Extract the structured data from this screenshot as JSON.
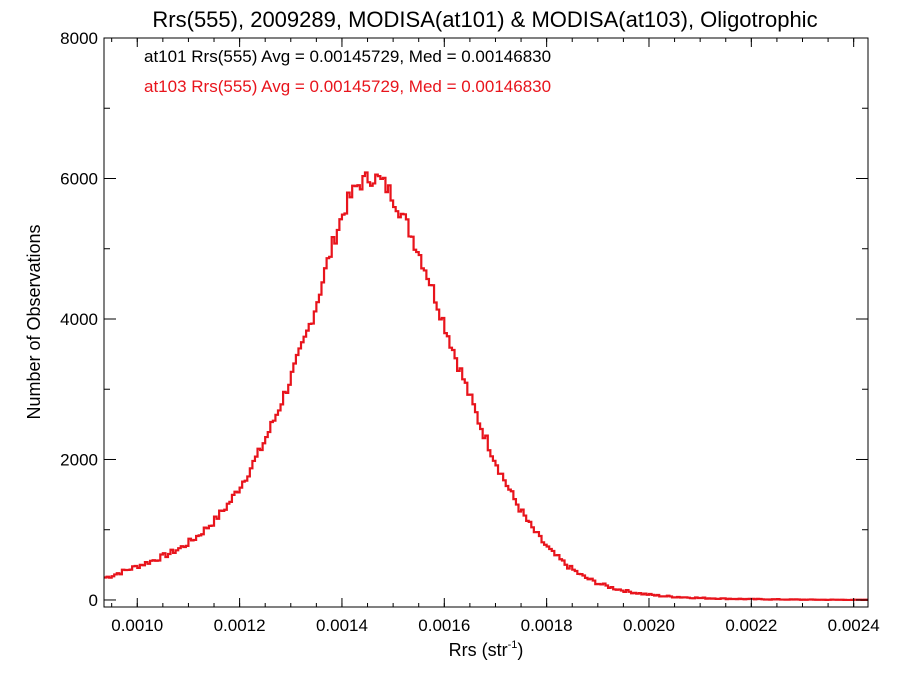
{
  "chart_data": {
    "type": "step-histogram",
    "title": "Rrs(555), 2009289, MODISA(at101) & MODISA(at103), Oligotrophic",
    "xlabel_base": "Rrs (str",
    "xlabel_sup": "-1",
    "xlabel_end": ")",
    "ylabel": "Number of Observations",
    "xlim": [
      0.000935,
      0.002428
    ],
    "ylim": [
      -100,
      8000
    ],
    "xticks": [
      0.001,
      0.0012,
      0.0014,
      0.0016,
      0.0018,
      0.002,
      0.0022,
      0.0024
    ],
    "xtick_labels": [
      "0.0010",
      "0.0012",
      "0.0014",
      "0.0016",
      "0.0018",
      "0.0020",
      "0.0022",
      "0.0024"
    ],
    "yticks": [
      0,
      2000,
      4000,
      6000,
      8000
    ],
    "ytick_labels": [
      "0",
      "2000",
      "4000",
      "6000",
      "8000"
    ],
    "bin_width": 5e-06,
    "grid": false,
    "annotations": [
      {
        "text": "at101 Rrs(555) Avg = 0.00145729, Med = 0.00146830",
        "color": "#000000"
      },
      {
        "text": "at103 Rrs(555) Avg = 0.00145729, Med = 0.00146830",
        "color": "#e8141c"
      }
    ],
    "series": [
      {
        "color": "#e8141c",
        "x": [
          0.00094,
          0.00097,
          0.001,
          0.00103,
          0.00106,
          0.00109,
          0.00112,
          0.00115,
          0.00118,
          0.00121,
          0.00124,
          0.00127,
          0.0013,
          0.00133,
          0.00135,
          0.00137,
          0.00139,
          0.00141,
          0.00143,
          0.00145,
          0.00146,
          0.00147,
          0.00148,
          0.00149,
          0.0015,
          0.00151,
          0.00153,
          0.00155,
          0.00157,
          0.00159,
          0.00161,
          0.00163,
          0.00165,
          0.00167,
          0.00169,
          0.00171,
          0.00173,
          0.00175,
          0.00177,
          0.00179,
          0.00181,
          0.00184,
          0.00187,
          0.0019,
          0.00193,
          0.00196,
          0.00199,
          0.00202,
          0.00205,
          0.0021,
          0.00215,
          0.0022,
          0.00225,
          0.0023,
          0.00235,
          0.0024,
          0.00243
        ],
        "y": [
          320,
          400,
          480,
          560,
          650,
          760,
          920,
          1120,
          1380,
          1720,
          2120,
          2600,
          3150,
          3750,
          4200,
          4750,
          5250,
          5650,
          5900,
          6000,
          6020,
          6000,
          5940,
          5850,
          5740,
          5600,
          5300,
          4960,
          4580,
          4150,
          3720,
          3300,
          2900,
          2500,
          2150,
          1820,
          1530,
          1270,
          1040,
          850,
          680,
          490,
          340,
          240,
          170,
          120,
          85,
          60,
          45,
          28,
          18,
          12,
          8,
          5,
          3,
          2,
          2
        ]
      }
    ]
  }
}
